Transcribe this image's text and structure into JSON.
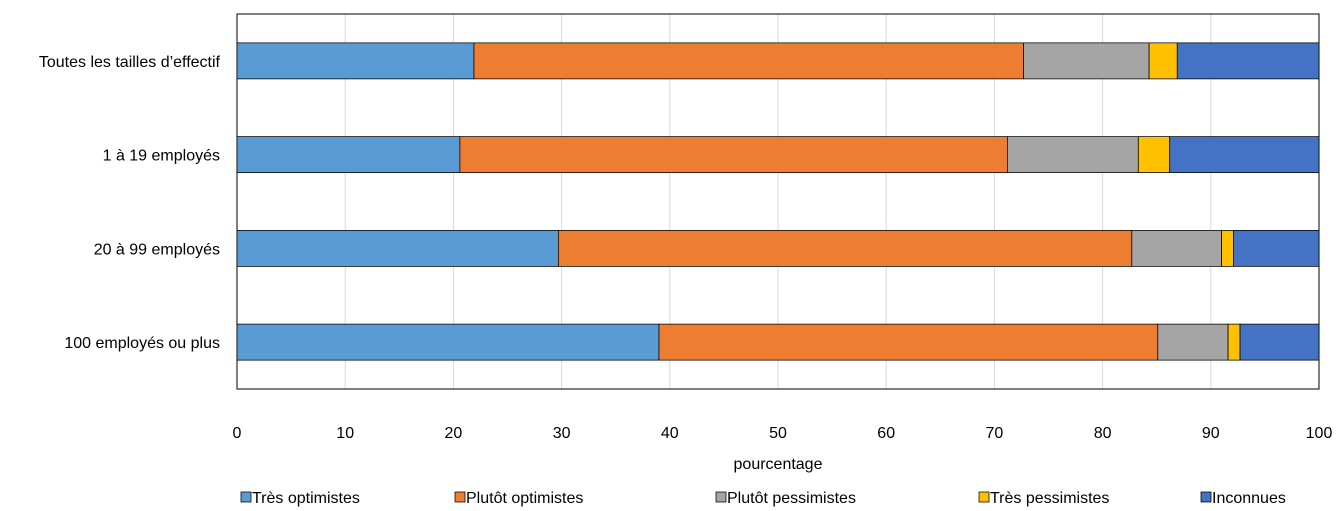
{
  "chart_data": {
    "type": "bar",
    "orientation": "horizontal",
    "stacked": true,
    "categories": [
      "Toutes les tailles d’effectif",
      "1 à 19 employés",
      "20 à 99 employés",
      "100 employés ou plus"
    ],
    "series": [
      {
        "name": "Très optimistes",
        "color": "#5b9bd5",
        "values": [
          21.9,
          20.6,
          29.7,
          39.0
        ]
      },
      {
        "name": "Plutôt optimistes",
        "color": "#ed7d31",
        "values": [
          50.8,
          50.6,
          53.0,
          46.1
        ]
      },
      {
        "name": "Plutôt pessimistes",
        "color": "#a5a5a5",
        "values": [
          11.6,
          12.1,
          8.3,
          6.5
        ]
      },
      {
        "name": "Très pessimistes",
        "color": "#ffc000",
        "values": [
          2.6,
          2.9,
          1.1,
          1.1
        ]
      },
      {
        "name": "Inconnues",
        "color": "#4472c4",
        "values": [
          13.1,
          13.8,
          7.9,
          7.3
        ]
      }
    ],
    "xlabel": "pourcentage",
    "xlim": [
      0,
      100
    ],
    "x_ticks": [
      "0",
      "10",
      "20",
      "30",
      "40",
      "50",
      "60",
      "70",
      "80",
      "90",
      "100"
    ],
    "grid": "vertical",
    "legend_position": "bottom"
  }
}
